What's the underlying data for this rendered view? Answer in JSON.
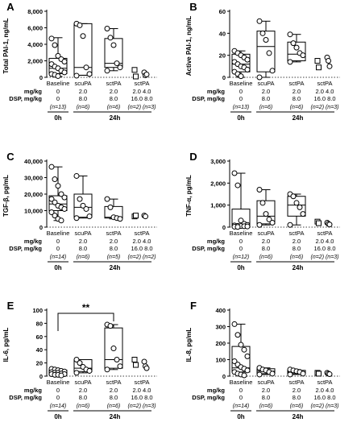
{
  "figure": {
    "x_axis_row_labels": [
      "mg/kg",
      "DSP, mg/kg"
    ],
    "sig_label": "**",
    "zero_h_label": "0h",
    "twentyfour_h_label": "24h"
  },
  "chart_data": [
    {
      "type": "box",
      "panel_letter": "A",
      "title": "",
      "ylabel": "Total PAI-1, ng/mL",
      "ylim": [
        0,
        8000
      ],
      "yticks": [
        0,
        2000,
        4000,
        6000,
        8000
      ],
      "ytick_labels": [
        "0",
        "2,000",
        "4,000",
        "6,000",
        "8,000"
      ],
      "categories": [
        "Baseline",
        "scuPA",
        "sctPA",
        "sctPA"
      ],
      "doses": [
        [
          "0",
          "0"
        ],
        [
          "2.0",
          "8.0"
        ],
        [
          "2.0",
          "8.0"
        ],
        [
          "2.0 4.0",
          "16.0 8.0"
        ]
      ],
      "n_labels": [
        [
          "(n=13)"
        ],
        [
          "(n=6)"
        ],
        [
          "(n=6)"
        ],
        [
          "(n=2)",
          "(n=3)"
        ]
      ],
      "groups": [
        {
          "marker": "circle",
          "box": [
            450,
            1100,
            2300
          ],
          "whiskers": [
            100,
            4800
          ],
          "points": [
            4700,
            3900,
            2600,
            2200,
            1900,
            1600,
            1300,
            1100,
            800,
            600,
            400,
            300,
            150
          ]
        },
        {
          "marker": "circle",
          "box": [
            250,
            1200,
            6500
          ],
          "whiskers": [
            250,
            6500
          ],
          "points": [
            6500,
            6300,
            5000,
            1200,
            400,
            200
          ]
        },
        {
          "marker": "circle",
          "box": [
            1200,
            1700,
            4700
          ],
          "whiskers": [
            800,
            5900
          ],
          "points": [
            5900,
            4800,
            3900,
            1700,
            1200,
            800
          ]
        },
        {
          "marker": "square",
          "points": [
            900,
            100
          ]
        },
        {
          "marker": "circle",
          "points": [
            600,
            250,
            350
          ]
        }
      ]
    },
    {
      "type": "box",
      "panel_letter": "B",
      "title": "",
      "ylabel": "Active PAI-1, ng/mL",
      "ylim": [
        0,
        60
      ],
      "yticks": [
        0,
        20,
        40,
        60
      ],
      "ytick_labels": [
        "0",
        "20",
        "40",
        "60"
      ],
      "categories": [
        "Baseline",
        "scuPA",
        "sctPA",
        "sctPA"
      ],
      "doses": [
        [
          "0",
          "0"
        ],
        [
          "2.0",
          "8.0"
        ],
        [
          "2.0",
          "8.0"
        ],
        [
          "2.0 4.0",
          "16.0 8.0"
        ]
      ],
      "n_labels": [
        [
          "(n=13)"
        ],
        [
          "(n=6)"
        ],
        [
          "(n=6)"
        ],
        [
          "(n=2)",
          "(n=3)"
        ]
      ],
      "groups": [
        {
          "marker": "circle",
          "box": [
            5,
            12,
            21
          ],
          "whiskers": [
            0,
            24
          ],
          "points": [
            24,
            22,
            20,
            18,
            16,
            14,
            12,
            10,
            9,
            7,
            5,
            3,
            1
          ]
        },
        {
          "marker": "circle",
          "box": [
            5,
            28,
            42
          ],
          "whiskers": [
            0,
            51
          ],
          "points": [
            51,
            40,
            34,
            22,
            6,
            0
          ]
        },
        {
          "marker": "circle",
          "box": [
            15,
            21,
            32
          ],
          "whiskers": [
            14,
            39
          ],
          "points": [
            39,
            31,
            27,
            22,
            20,
            14
          ]
        },
        {
          "marker": "square",
          "points": [
            15,
            9
          ]
        },
        {
          "marker": "circle",
          "points": [
            18,
            15,
            10
          ]
        }
      ]
    },
    {
      "type": "box",
      "panel_letter": "C",
      "title": "",
      "ylabel": "TGF-β, pg/mL",
      "ylim": [
        0,
        40000
      ],
      "yticks": [
        0,
        10000,
        20000,
        30000,
        40000
      ],
      "ytick_labels": [
        "0",
        "10,000",
        "20,000",
        "30,000",
        "40,000"
      ],
      "categories": [
        "Baseline",
        "scuPA",
        "sctPA",
        "sctPA"
      ],
      "doses": [
        [
          "0",
          "0"
        ],
        [
          "2.0",
          "8.0"
        ],
        [
          "2.0",
          "8.0"
        ],
        [
          "2.0 4.0",
          "16.0 8.0"
        ]
      ],
      "n_labels": [
        [
          "(n=14)"
        ],
        [
          "(n=6)"
        ],
        [
          "(n=5)"
        ],
        [
          "(n=2)",
          "(n=2)"
        ]
      ],
      "groups": [
        {
          "marker": "circle",
          "box": [
            10000,
            14000,
            19000
          ],
          "whiskers": [
            4000,
            36500
          ],
          "points": [
            36500,
            29000,
            25000,
            20000,
            18000,
            17000,
            15000,
            13000,
            12000,
            11000,
            9000,
            7000,
            5000,
            4000
          ]
        },
        {
          "marker": "circle",
          "box": [
            6000,
            12000,
            20000
          ],
          "whiskers": [
            5500,
            31000
          ],
          "points": [
            31000,
            17000,
            13000,
            11000,
            6500,
            5500
          ]
        },
        {
          "marker": "circle",
          "box": [
            5500,
            6000,
            12500
          ],
          "whiskers": [
            5000,
            17000
          ],
          "points": [
            17000,
            12000,
            6000,
            5500,
            5000
          ]
        },
        {
          "marker": "square",
          "points": [
            6500,
            7000
          ]
        },
        {
          "marker": "circle",
          "points": [
            7000,
            6500
          ]
        }
      ]
    },
    {
      "type": "box",
      "panel_letter": "D",
      "title": "",
      "ylabel": "TNF-α, pg/mL",
      "ylim": [
        0,
        3000
      ],
      "yticks": [
        0,
        1000,
        2000,
        3000
      ],
      "ytick_labels": [
        "0",
        "1,000",
        "2,000",
        "3,000"
      ],
      "categories": [
        "Baseline",
        "scuPA",
        "sctPA",
        "sctPA"
      ],
      "doses": [
        [
          "0",
          "0"
        ],
        [
          "2.0",
          "8.0"
        ],
        [
          "2.0",
          "8.0"
        ],
        [
          "2.0 4.0",
          "16.0 8.0"
        ]
      ],
      "n_labels": [
        [
          "(n=12)"
        ],
        [
          "(n=6)"
        ],
        [
          "(n=6)"
        ],
        [
          "(n=2)",
          "(n=3)"
        ]
      ],
      "groups": [
        {
          "marker": "circle",
          "box": [
            30,
            120,
            820
          ],
          "whiskers": [
            0,
            2450
          ],
          "points": [
            2450,
            1900,
            300,
            150,
            100,
            80,
            60,
            50,
            40,
            30,
            20,
            10
          ]
        },
        {
          "marker": "circle",
          "box": [
            150,
            500,
            1200
          ],
          "whiskers": [
            100,
            1700
          ],
          "points": [
            1700,
            1100,
            600,
            350,
            200,
            100
          ]
        },
        {
          "marker": "circle",
          "box": [
            500,
            1000,
            1400
          ],
          "whiskers": [
            100,
            1500
          ],
          "points": [
            1500,
            1400,
            1100,
            900,
            600,
            100
          ]
        },
        {
          "marker": "square",
          "points": [
            250,
            180
          ]
        },
        {
          "marker": "circle",
          "points": [
            200,
            150,
            120
          ]
        }
      ]
    },
    {
      "type": "box",
      "panel_letter": "E",
      "title": "",
      "ylabel": "IL-6, pg/mL",
      "ylim": [
        0,
        100
      ],
      "yticks": [
        0,
        20,
        40,
        60,
        80,
        100
      ],
      "ytick_labels": [
        "0",
        "20",
        "40",
        "60",
        "80",
        "100"
      ],
      "categories": [
        "Baseline",
        "scuPA",
        "sctPA",
        "sctPA"
      ],
      "doses": [
        [
          "0",
          "0"
        ],
        [
          "2.0",
          "8.0"
        ],
        [
          "2.0",
          "8.0"
        ],
        [
          "2.0 4.0",
          "16.0 8.0"
        ]
      ],
      "n_labels": [
        [
          "(n=14)"
        ],
        [
          "(n=6)"
        ],
        [
          "(n=6)"
        ],
        [
          "(n=2)",
          "(n=3)"
        ]
      ],
      "significance": {
        "from": 0,
        "to": 2,
        "label": "**"
      },
      "groups": [
        {
          "marker": "circle",
          "box": [
            2,
            5,
            9
          ],
          "whiskers": [
            1,
            11
          ],
          "points": [
            11,
            10,
            9,
            8,
            7,
            6,
            5,
            5,
            4,
            3,
            3,
            2,
            2,
            1
          ]
        },
        {
          "marker": "circle",
          "box": [
            7,
            12,
            25
          ],
          "whiskers": [
            5,
            25
          ],
          "points": [
            25,
            20,
            14,
            10,
            8,
            5
          ]
        },
        {
          "marker": "circle",
          "box": [
            12,
            25,
            73
          ],
          "whiskers": [
            10,
            78
          ],
          "points": [
            78,
            76,
            42,
            25,
            15,
            10
          ]
        },
        {
          "marker": "square",
          "points": [
            25,
            17
          ]
        },
        {
          "marker": "circle",
          "points": [
            22,
            15,
            12
          ]
        }
      ]
    },
    {
      "type": "box",
      "panel_letter": "F",
      "title": "",
      "ylabel": "IL-8, pg/mL",
      "ylim": [
        0,
        400
      ],
      "yticks": [
        0,
        100,
        200,
        300,
        400
      ],
      "ytick_labels": [
        "0",
        "100",
        "200",
        "300",
        "400"
      ],
      "categories": [
        "Baseline",
        "scuPA",
        "sctPA",
        "sctPA"
      ],
      "doses": [
        [
          "0",
          "0"
        ],
        [
          "2.0",
          "8.0"
        ],
        [
          "2.0",
          "8.0"
        ],
        [
          "2.0 4.0",
          "16.0 8.0"
        ]
      ],
      "n_labels": [
        [
          "(n=14)"
        ],
        [
          "(n=6)"
        ],
        [
          "(n=6)"
        ],
        [
          "(n=2)",
          "(n=3)"
        ]
      ],
      "groups": [
        {
          "marker": "circle",
          "box": [
            25,
            50,
            180
          ],
          "whiskers": [
            5,
            315
          ],
          "points": [
            315,
            250,
            190,
            160,
            120,
            90,
            70,
            55,
            45,
            35,
            25,
            15,
            10,
            5
          ]
        },
        {
          "marker": "circle",
          "box": [
            15,
            30,
            45
          ],
          "whiskers": [
            10,
            50
          ],
          "points": [
            50,
            40,
            35,
            25,
            15,
            10
          ]
        },
        {
          "marker": "circle",
          "box": [
            15,
            25,
            35
          ],
          "whiskers": [
            10,
            40
          ],
          "points": [
            40,
            35,
            30,
            25,
            15,
            10
          ]
        },
        {
          "marker": "square",
          "points": [
            20,
            15
          ]
        },
        {
          "marker": "circle",
          "points": [
            20,
            15,
            12
          ]
        }
      ]
    }
  ]
}
